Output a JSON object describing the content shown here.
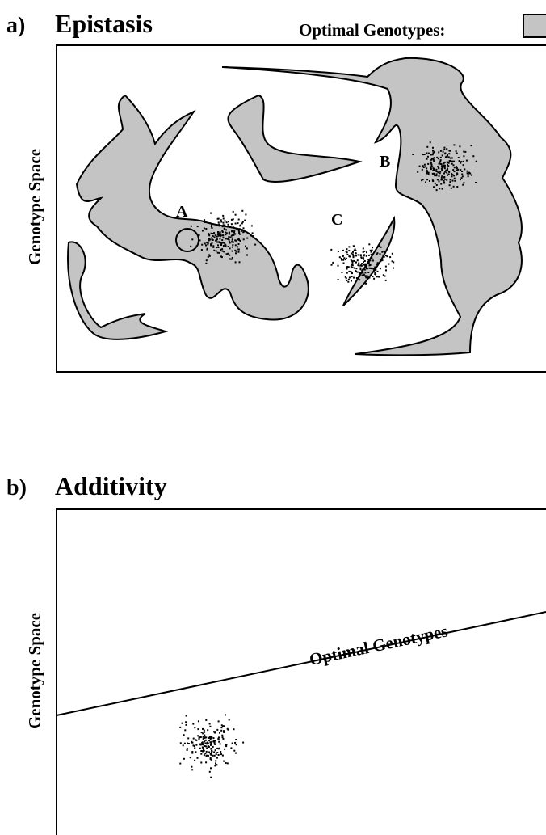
{
  "panel_a": {
    "label": "a)",
    "title": "Epistasis",
    "legend": "Optimal Genotypes:",
    "y_axis": "Genotype Space",
    "points": [
      "A",
      "B",
      "C"
    ]
  },
  "panel_b": {
    "label": "b)",
    "title": "Additivity",
    "y_axis": "Genotype Space",
    "line_label": "Optimal Genotypes"
  }
}
